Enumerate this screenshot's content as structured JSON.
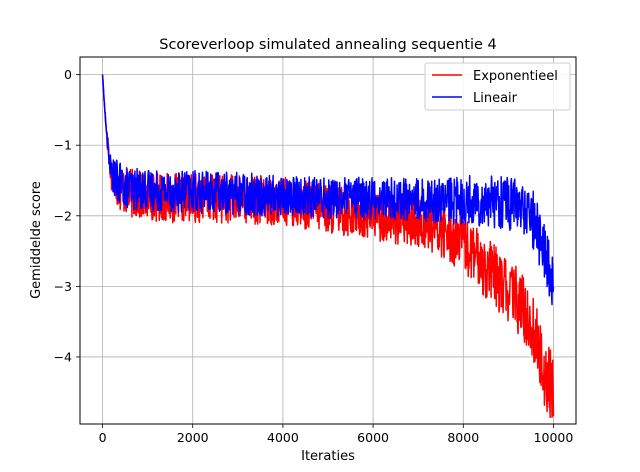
{
  "chart_data": {
    "type": "line",
    "title": "Scoreverloop simulated annealing sequentie 4",
    "xlabel": "Iteraties",
    "ylabel": "Gemiddelde score",
    "xlim": [
      -500,
      10500
    ],
    "ylim": [
      -4.95,
      0.25
    ],
    "xticks": [
      0,
      2000,
      4000,
      6000,
      8000,
      10000
    ],
    "xtick_labels": [
      "0",
      "2000",
      "4000",
      "6000",
      "8000",
      "10000"
    ],
    "yticks": [
      0,
      -1,
      -2,
      -3,
      -4
    ],
    "ytick_labels": [
      "0",
      "−1",
      "−2",
      "−3",
      "−4"
    ],
    "grid": true,
    "legend": "top-right",
    "series": [
      {
        "name": "Exponentieel",
        "color": "#ff0000",
        "x": [
          0,
          50,
          100,
          150,
          200,
          300,
          400,
          500,
          700,
          900,
          1200,
          1500,
          2000,
          2500,
          3000,
          3500,
          4000,
          4500,
          5000,
          5500,
          6000,
          6500,
          7000,
          7500,
          8000,
          8300,
          8600,
          8900,
          9200,
          9400,
          9600,
          9700,
          9800,
          9900,
          10000
        ],
        "y": [
          0,
          -0.5,
          -0.9,
          -1.2,
          -1.4,
          -1.5,
          -1.6,
          -1.65,
          -1.7,
          -1.72,
          -1.73,
          -1.75,
          -1.75,
          -1.75,
          -1.77,
          -1.78,
          -1.8,
          -1.85,
          -1.9,
          -1.95,
          -2.0,
          -2.05,
          -2.1,
          -2.2,
          -2.4,
          -2.6,
          -2.8,
          -3.0,
          -3.2,
          -3.4,
          -3.7,
          -4.0,
          -4.2,
          -4.35,
          -4.4
        ],
        "noise": 0.35
      },
      {
        "name": "Lineair",
        "color": "#0000ff",
        "x": [
          0,
          50,
          100,
          150,
          200,
          300,
          400,
          500,
          700,
          900,
          1200,
          1500,
          2000,
          2500,
          3000,
          3500,
          4000,
          4500,
          5000,
          5500,
          6000,
          6500,
          7000,
          7500,
          8000,
          8300,
          8600,
          8900,
          9200,
          9400,
          9600,
          9700,
          9800,
          9900,
          10000
        ],
        "y": [
          0,
          -0.5,
          -0.9,
          -1.2,
          -1.4,
          -1.5,
          -1.55,
          -1.6,
          -1.62,
          -1.63,
          -1.64,
          -1.65,
          -1.66,
          -1.67,
          -1.68,
          -1.7,
          -1.72,
          -1.73,
          -1.74,
          -1.75,
          -1.75,
          -1.76,
          -1.77,
          -1.78,
          -1.78,
          -1.78,
          -1.78,
          -1.8,
          -1.85,
          -1.95,
          -2.1,
          -2.3,
          -2.5,
          -2.8,
          -3.0
        ],
        "noise": 0.3
      }
    ]
  }
}
